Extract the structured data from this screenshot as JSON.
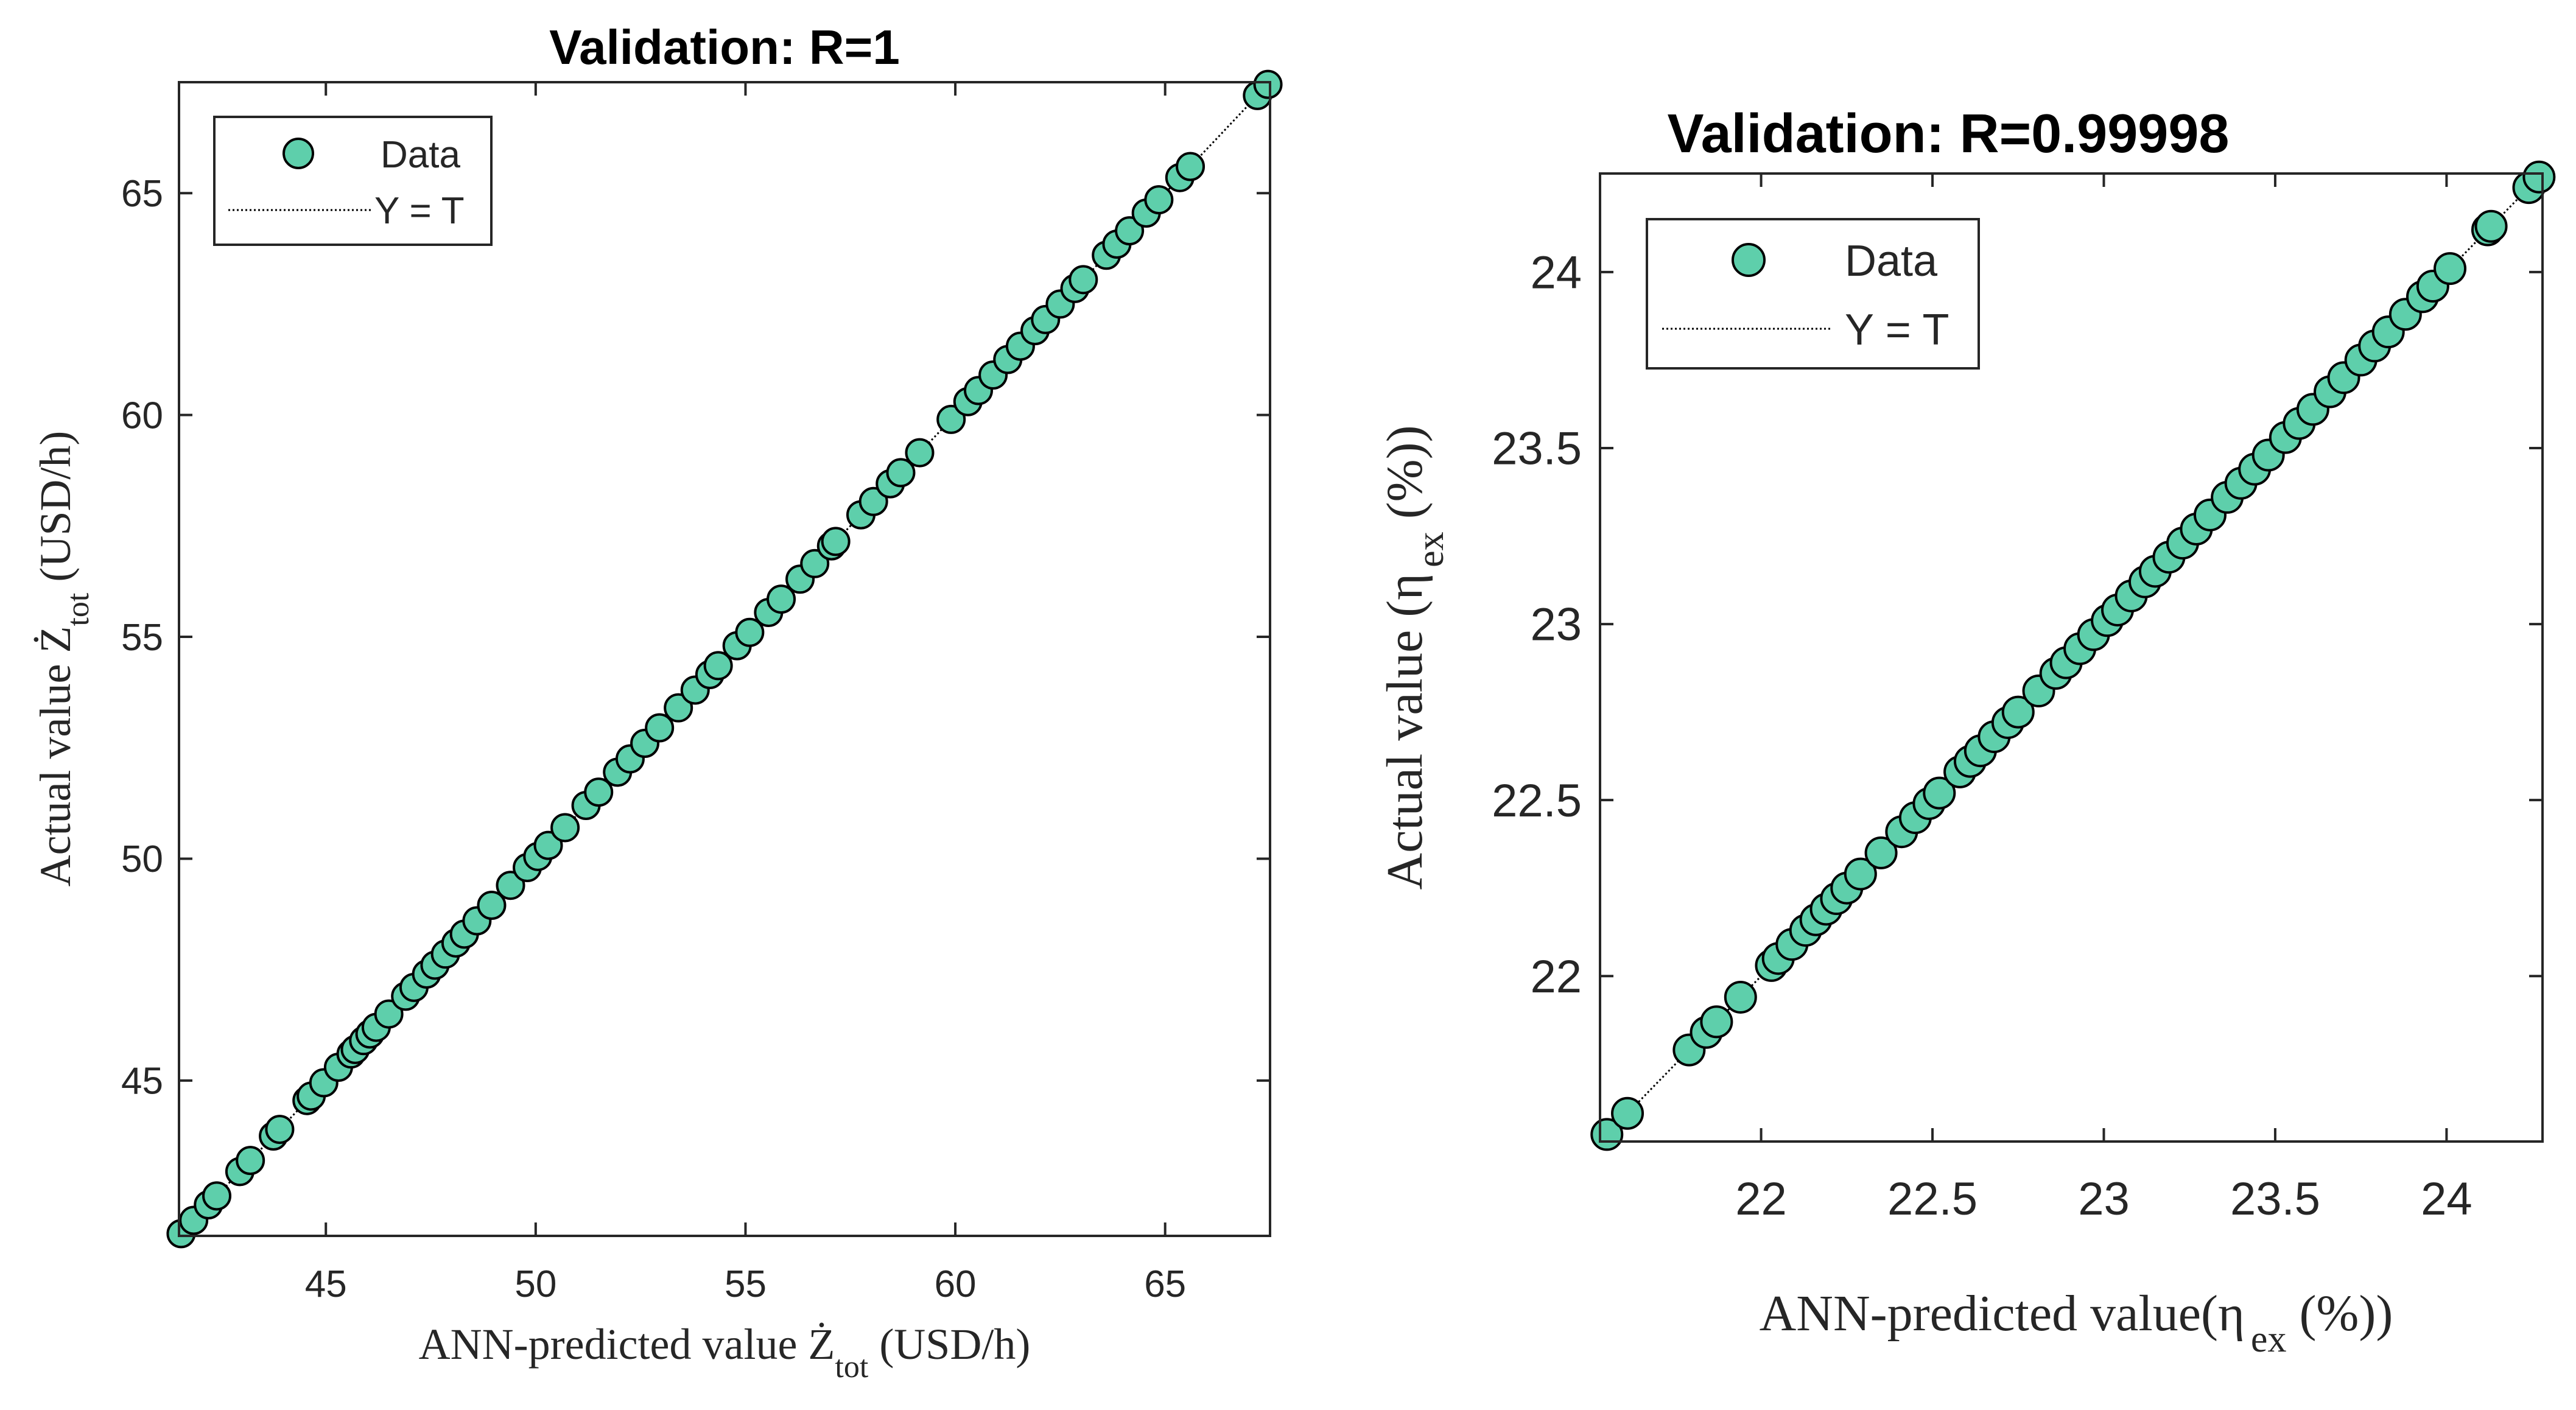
{
  "colors": {
    "marker_fill": "#5ECFAB",
    "marker_edge": "#000000",
    "axes": "#262626",
    "text": "#262626",
    "fit_line": "#000000",
    "background": "#ffffff"
  },
  "chart_data": [
    {
      "type": "scatter",
      "title": "Validation: R=1",
      "xlabel": {
        "prefix": "ANN-predicted value ",
        "symbol": "Ż",
        "sub": "tot",
        "suffix": "  (USD/h)"
      },
      "ylabel": {
        "prefix": "Actual value ",
        "symbol": "Ż",
        "sub": "tot",
        "suffix": "  (USD/h)"
      },
      "xlim": [
        41.5,
        67.5
      ],
      "ylim": [
        41.5,
        67.5
      ],
      "xticks": [
        45,
        50,
        55,
        60,
        65
      ],
      "yticks": [
        45,
        50,
        55,
        60,
        65
      ],
      "xtick_labels": [
        "45",
        "50",
        "55",
        "60",
        "65"
      ],
      "ytick_labels": [
        "45",
        "50",
        "55",
        "60",
        "65"
      ],
      "legend": {
        "position": "top-left",
        "entries": [
          "Data",
          "Y = T"
        ]
      },
      "fit_line": {
        "label": "Y = T",
        "from": [
          41.5,
          41.5
        ],
        "to": [
          67.5,
          67.5
        ]
      },
      "series": [
        {
          "name": "Data",
          "x": [
            41.55,
            41.85,
            42.2,
            42.4,
            42.95,
            43.2,
            43.75,
            43.9,
            44.55,
            44.65,
            44.95,
            45.3,
            45.6,
            45.7,
            45.9,
            46.05,
            46.2,
            46.5,
            46.9,
            47.1,
            47.4,
            47.6,
            47.85,
            48.1,
            48.3,
            48.6,
            48.95,
            49.4,
            49.8,
            50.05,
            50.3,
            50.7,
            51.2,
            51.5,
            51.95,
            52.25,
            52.6,
            52.95,
            53.4,
            53.8,
            54.15,
            54.35,
            54.8,
            55.1,
            55.55,
            55.85,
            56.3,
            56.65,
            57.05,
            57.15,
            57.75,
            58.05,
            58.45,
            58.7,
            59.15,
            59.9,
            60.3,
            60.55,
            60.9,
            61.25,
            61.55,
            61.9,
            62.15,
            62.5,
            62.85,
            63.05,
            63.6,
            63.85,
            64.15,
            64.55,
            64.85,
            65.35,
            65.6,
            67.2,
            67.45
          ],
          "y": [
            41.55,
            41.85,
            42.2,
            42.4,
            42.95,
            43.2,
            43.75,
            43.9,
            44.55,
            44.65,
            44.95,
            45.3,
            45.6,
            45.7,
            45.9,
            46.05,
            46.2,
            46.5,
            46.9,
            47.1,
            47.4,
            47.6,
            47.85,
            48.1,
            48.3,
            48.6,
            48.95,
            49.4,
            49.8,
            50.05,
            50.3,
            50.7,
            51.2,
            51.5,
            51.95,
            52.25,
            52.6,
            52.95,
            53.4,
            53.8,
            54.15,
            54.35,
            54.8,
            55.1,
            55.55,
            55.85,
            56.3,
            56.65,
            57.05,
            57.15,
            57.75,
            58.05,
            58.45,
            58.7,
            59.15,
            59.9,
            60.3,
            60.55,
            60.9,
            61.25,
            61.55,
            61.9,
            62.15,
            62.5,
            62.85,
            63.05,
            63.6,
            63.85,
            64.15,
            64.55,
            64.85,
            65.35,
            65.6,
            67.2,
            67.45
          ]
        }
      ]
    },
    {
      "type": "scatter",
      "title": "Validation: R=0.99998",
      "xlabel": {
        "prefix": "ANN-predicted value(",
        "symbol": "η",
        "sub": "ex",
        "suffix": " (%))"
      },
      "ylabel": {
        "prefix": "Actual value (",
        "symbol": "η",
        "sub": "ex",
        "suffix": " (%))"
      },
      "xlim": [
        21.53,
        24.28
      ],
      "ylim": [
        21.53,
        24.28
      ],
      "xticks": [
        22,
        22.5,
        23,
        23.5,
        24
      ],
      "yticks": [
        22,
        22.5,
        23,
        23.5,
        24
      ],
      "xtick_labels": [
        "22",
        "22.5",
        "23",
        "23.5",
        "24"
      ],
      "ytick_labels": [
        "22",
        "22.5",
        "23",
        "23.5",
        "24"
      ],
      "legend": {
        "position": "top-left",
        "entries": [
          "Data",
          "Y = T"
        ]
      },
      "fit_line": {
        "label": "Y = T",
        "from": [
          21.53,
          21.53
        ],
        "to": [
          24.28,
          24.28
        ]
      },
      "series": [
        {
          "name": "Data",
          "x": [
            21.55,
            21.61,
            21.79,
            21.84,
            21.87,
            21.94,
            22.03,
            22.05,
            22.09,
            22.13,
            22.16,
            22.19,
            22.22,
            22.25,
            22.29,
            22.35,
            22.41,
            22.45,
            22.49,
            22.52,
            22.58,
            22.61,
            22.64,
            22.68,
            22.72,
            22.75,
            22.81,
            22.86,
            22.89,
            22.93,
            22.97,
            23.01,
            23.04,
            23.08,
            23.12,
            23.15,
            23.19,
            23.23,
            23.27,
            23.31,
            23.36,
            23.4,
            23.44,
            23.48,
            23.53,
            23.57,
            23.61,
            23.66,
            23.7,
            23.75,
            23.79,
            23.83,
            23.88,
            23.93,
            23.96,
            24.01,
            24.12,
            24.13,
            24.24,
            24.27
          ],
          "y": [
            21.55,
            21.61,
            21.79,
            21.84,
            21.87,
            21.94,
            22.03,
            22.05,
            22.09,
            22.13,
            22.16,
            22.19,
            22.22,
            22.25,
            22.29,
            22.35,
            22.41,
            22.45,
            22.49,
            22.52,
            22.58,
            22.61,
            22.64,
            22.68,
            22.72,
            22.75,
            22.81,
            22.86,
            22.89,
            22.93,
            22.97,
            23.01,
            23.04,
            23.08,
            23.12,
            23.15,
            23.19,
            23.23,
            23.27,
            23.31,
            23.36,
            23.4,
            23.44,
            23.48,
            23.53,
            23.57,
            23.61,
            23.66,
            23.7,
            23.75,
            23.79,
            23.83,
            23.88,
            23.93,
            23.96,
            24.01,
            24.12,
            24.13,
            24.24,
            24.27
          ]
        }
      ]
    }
  ]
}
